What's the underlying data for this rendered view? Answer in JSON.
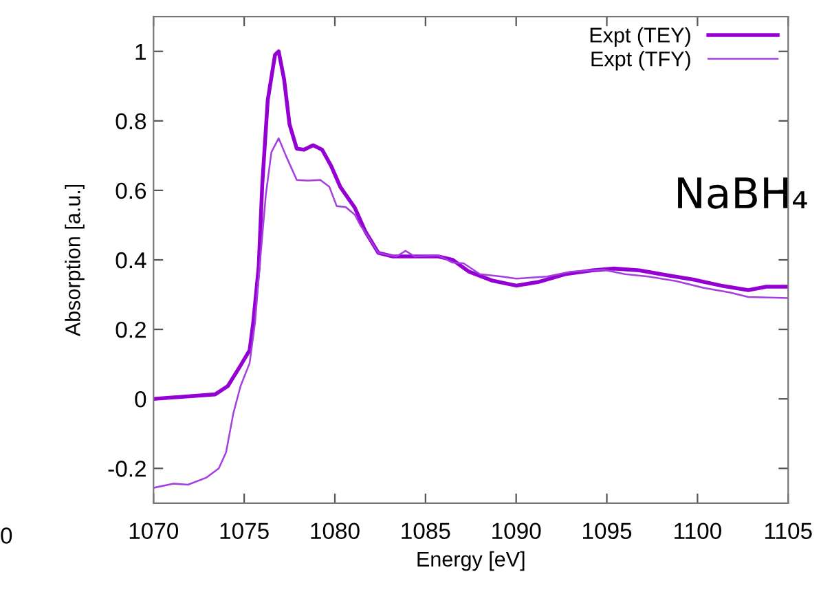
{
  "chart_data": {
    "type": "line",
    "xlabel": "Energy [eV]",
    "ylabel": "Absorption [a.u.]",
    "xlim": [
      1070,
      1105
    ],
    "ylim": [
      -0.3,
      1.1
    ],
    "xticks": [
      1070,
      1075,
      1080,
      1085,
      1090,
      1095,
      1100,
      1105
    ],
    "yticks": [
      -0.2,
      0,
      0.2,
      0.4,
      0.6,
      0.8,
      1
    ],
    "grid": false,
    "legend": "top right",
    "marker": "none",
    "line_style": "solid",
    "annotations": [
      "NaBH₄",
      "0"
    ],
    "series": [
      {
        "name": "Expt (TEY)",
        "color": "#9400d3",
        "x": [
          1070,
          1073.4,
          1074.1,
          1074.8,
          1075.3,
          1075.5,
          1075.8,
          1076.0,
          1076.3,
          1076.7,
          1076.9,
          1077.2,
          1077.5,
          1077.9,
          1078.3,
          1078.8,
          1079.3,
          1079.8,
          1080.3,
          1081.1,
          1081.7,
          1082.4,
          1083.2,
          1084.2,
          1085.7,
          1086.5,
          1087.4,
          1088.7,
          1090.0,
          1091.2,
          1092.7,
          1094.2,
          1095.4,
          1096.8,
          1098.3,
          1099.8,
          1101.3,
          1102.8,
          1103.8,
          1105
        ],
        "values": [
          0.0,
          0.013,
          0.037,
          0.096,
          0.14,
          0.22,
          0.38,
          0.62,
          0.86,
          0.99,
          1.0,
          0.92,
          0.79,
          0.72,
          0.717,
          0.73,
          0.717,
          0.67,
          0.61,
          0.55,
          0.48,
          0.42,
          0.41,
          0.41,
          0.41,
          0.4,
          0.366,
          0.34,
          0.326,
          0.336,
          0.359,
          0.37,
          0.375,
          0.37,
          0.356,
          0.343,
          0.326,
          0.313,
          0.323,
          0.323
        ]
      },
      {
        "name": "Expt (TFY)",
        "color": "#a43ee0",
        "x": [
          1070,
          1071.1,
          1071.9,
          1072.9,
          1073.6,
          1074.0,
          1074.4,
          1074.8,
          1075.3,
          1075.6,
          1075.9,
          1076.2,
          1076.5,
          1076.9,
          1077.3,
          1077.9,
          1078.5,
          1079.2,
          1079.7,
          1080.1,
          1080.6,
          1081.1,
          1081.4,
          1081.8,
          1082.4,
          1083.4,
          1083.9,
          1084.4,
          1085.7,
          1086.5,
          1087.1,
          1088.0,
          1089.2,
          1090.0,
          1091.7,
          1093.0,
          1094.8,
          1096.0,
          1097.3,
          1098.8,
          1100.3,
          1101.8,
          1102.8,
          1105
        ],
        "values": [
          -0.256,
          -0.244,
          -0.247,
          -0.227,
          -0.2,
          -0.154,
          -0.042,
          0.037,
          0.103,
          0.22,
          0.41,
          0.59,
          0.71,
          0.75,
          0.7,
          0.63,
          0.628,
          0.63,
          0.61,
          0.555,
          0.552,
          0.53,
          0.5,
          0.47,
          0.42,
          0.41,
          0.426,
          0.41,
          0.413,
          0.392,
          0.39,
          0.359,
          0.352,
          0.346,
          0.352,
          0.366,
          0.372,
          0.359,
          0.352,
          0.339,
          0.32,
          0.306,
          0.293,
          0.29
        ]
      }
    ]
  }
}
